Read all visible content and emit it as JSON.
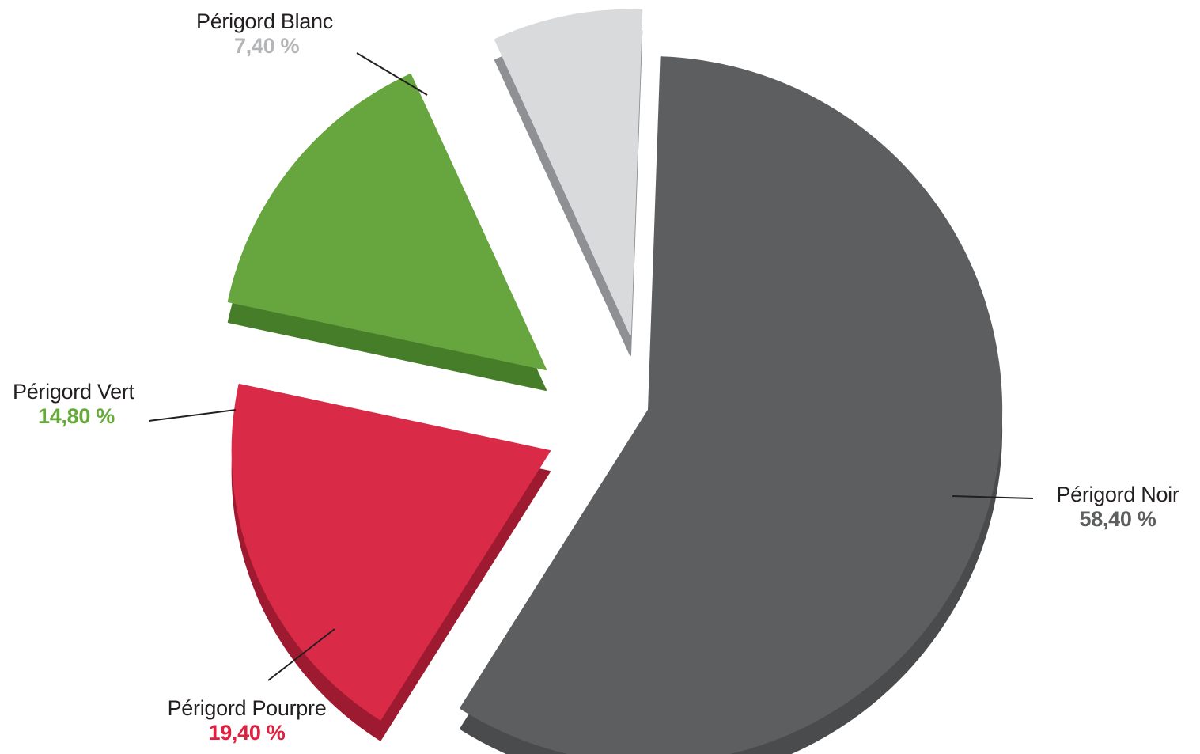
{
  "chart_data": {
    "type": "pie",
    "title": "",
    "slices": [
      {
        "name": "Périgord Noir",
        "value": 58.4,
        "value_label": "58,40 %",
        "color": "#5d5e60",
        "side_color": "#4a4b4d",
        "label_color": "#5d5e60"
      },
      {
        "name": "Périgord Pourpre",
        "value": 19.4,
        "value_label": "19,40 %",
        "color": "#d92a47",
        "side_color": "#9e1a30",
        "label_color": "#e0203f"
      },
      {
        "name": "Périgord Vert",
        "value": 14.8,
        "value_label": "14,80 %",
        "color": "#67a53f",
        "side_color": "#467d29",
        "label_color": "#67aa3c"
      },
      {
        "name": "Périgord Blanc",
        "value": 7.4,
        "value_label": "7,40 %",
        "color": "#d9dadc",
        "side_color": "#8f9093",
        "label_color": "#b4b5b7"
      }
    ],
    "style": "3d-exploded-pie",
    "legend": "none"
  }
}
